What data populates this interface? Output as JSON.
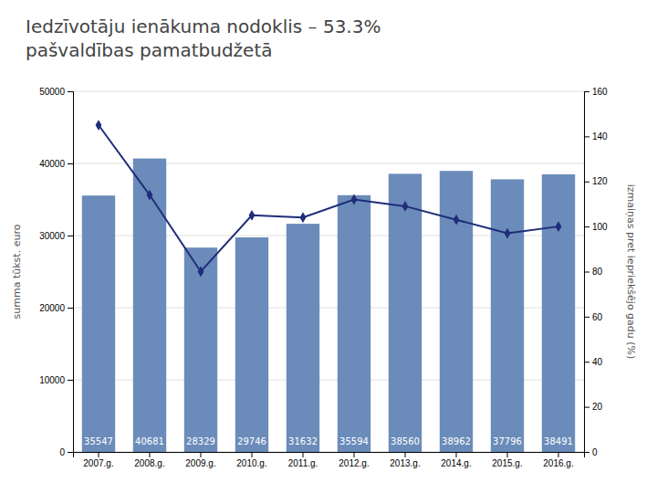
{
  "chart_data": {
    "type": "bar",
    "title": "Iedzīvotāju ienākuma nodoklis – 53.3%",
    "subtitle": "pašvaldības pamatbudžetā",
    "categories": [
      "2007.g.",
      "2008.g.",
      "2009.g.",
      "2010.g.",
      "2011.g.",
      "2012.g.",
      "2013.g.",
      "2014.g.",
      "2015.g.",
      "2016.g."
    ],
    "series": [
      {
        "type": "bar",
        "color": "#6b8cba",
        "data_labels": true,
        "values": [
          35547,
          40681,
          28329,
          29746,
          31632,
          35594,
          38560,
          38962,
          37796,
          38491
        ]
      },
      {
        "type": "line",
        "color": "#1f2d7a",
        "marker": "diamond",
        "axis": "y2",
        "values": [
          145,
          114,
          80,
          105,
          104,
          112,
          109,
          103,
          97,
          100
        ]
      }
    ],
    "ylabel": "summa tūkst. euro",
    "y2label": "izmaiņas pret iepriekšējo gadu (%)",
    "ylim": [
      0,
      50000
    ],
    "yticks": [
      0,
      10000,
      20000,
      30000,
      40000,
      50000
    ],
    "y2lim": [
      0,
      160
    ],
    "y2ticks": [
      0,
      20,
      40,
      60,
      80,
      100,
      120,
      140,
      160
    ],
    "grid": true
  }
}
